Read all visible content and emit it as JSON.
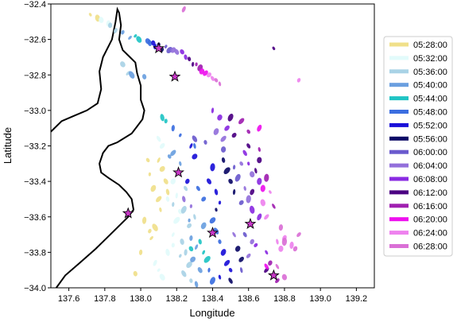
{
  "chart_data": {
    "type": "scatter",
    "xlabel": "Longitude",
    "ylabel": "Latitude",
    "xlim": [
      137.5,
      139.3
    ],
    "ylim": [
      -34.0,
      -32.4
    ],
    "xticks": [
      137.6,
      137.8,
      138.0,
      138.2,
      138.4,
      138.6,
      138.8,
      139.0,
      139.2
    ],
    "yticks": [
      -32.4,
      -32.6,
      -32.8,
      -33.0,
      -33.2,
      -33.4,
      -33.6,
      -33.8,
      -34.0
    ],
    "xtick_labels": [
      "137.6",
      "137.8",
      "138.0",
      "138.2",
      "138.4",
      "138.6",
      "138.8",
      "139.0",
      "139.2"
    ],
    "ytick_labels": [
      "−32.4",
      "−32.6",
      "−32.8",
      "−33.0",
      "−33.2",
      "−33.4",
      "−33.6",
      "−33.8",
      "−34.0"
    ],
    "grid": false,
    "legend_position": "right",
    "series": [
      {
        "name": "05:28:00",
        "color": "#f0e08a",
        "points": [
          [
            137.72,
            -32.46
          ],
          [
            137.76,
            -32.48
          ],
          [
            138.02,
            -33.62
          ],
          [
            138.05,
            -33.68
          ],
          [
            138.06,
            -33.72
          ],
          [
            138.08,
            -33.66
          ],
          [
            137.97,
            -33.92
          ],
          [
            138.0,
            -33.8
          ],
          [
            138.1,
            -33.28
          ],
          [
            138.12,
            -33.33
          ],
          [
            138.14,
            -33.4
          ],
          [
            138.15,
            -33.46
          ],
          [
            138.05,
            -33.36
          ],
          [
            138.07,
            -33.44
          ],
          [
            138.1,
            -33.5
          ],
          [
            138.04,
            -33.28
          ],
          [
            138.11,
            -33.56
          ]
        ]
      },
      {
        "name": "05:32:00",
        "color": "#e2fbfb",
        "points": [
          [
            137.78,
            -32.49
          ],
          [
            137.82,
            -32.51
          ],
          [
            138.08,
            -33.86
          ],
          [
            138.1,
            -33.9
          ],
          [
            138.12,
            -33.94
          ],
          [
            138.15,
            -33.8
          ],
          [
            138.18,
            -33.76
          ],
          [
            138.18,
            -33.7
          ],
          [
            138.2,
            -33.62
          ],
          [
            138.22,
            -33.57
          ],
          [
            138.15,
            -33.5
          ],
          [
            138.2,
            -33.48
          ],
          [
            138.18,
            -33.4
          ],
          [
            138.12,
            -33.2
          ],
          [
            138.1,
            -33.16
          ]
        ]
      },
      {
        "name": "05:36:00",
        "color": "#a9d3e6",
        "points": [
          [
            137.83,
            -32.52
          ],
          [
            137.86,
            -32.55
          ],
          [
            137.93,
            -32.79
          ],
          [
            137.9,
            -32.74
          ],
          [
            138.23,
            -33.74
          ],
          [
            138.25,
            -33.8
          ],
          [
            138.22,
            -33.82
          ],
          [
            138.27,
            -33.87
          ],
          [
            138.24,
            -33.92
          ],
          [
            138.28,
            -33.96
          ],
          [
            138.18,
            -33.53
          ],
          [
            138.24,
            -33.56
          ],
          [
            138.27,
            -33.65
          ],
          [
            138.25,
            -33.44
          ],
          [
            138.3,
            -33.6
          ]
        ]
      },
      {
        "name": "05:40:00",
        "color": "#6a9fe0",
        "points": [
          [
            137.9,
            -32.56
          ],
          [
            137.94,
            -32.59
          ],
          [
            137.95,
            -32.8
          ],
          [
            138.02,
            -32.81
          ],
          [
            138.28,
            -33.72
          ],
          [
            138.31,
            -33.77
          ],
          [
            138.29,
            -33.84
          ],
          [
            138.33,
            -33.9
          ],
          [
            138.31,
            -33.98
          ],
          [
            138.27,
            -33.62
          ],
          [
            138.35,
            -33.65
          ],
          [
            138.18,
            -33.24
          ],
          [
            138.16,
            -33.26
          ],
          [
            138.22,
            -33.3
          ]
        ]
      },
      {
        "name": "05:44:00",
        "color": "#20c4c4",
        "points": [
          [
            137.97,
            -32.58
          ],
          [
            137.99,
            -32.6
          ],
          [
            138.12,
            -33.04
          ],
          [
            138.14,
            -33.06
          ],
          [
            138.35,
            -33.8
          ],
          [
            138.37,
            -33.84
          ],
          [
            138.28,
            -33.78
          ],
          [
            138.33,
            -33.74
          ]
        ]
      },
      {
        "name": "05:48:00",
        "color": "#3b6ee0",
        "points": [
          [
            138.04,
            -32.61
          ],
          [
            138.05,
            -32.62
          ],
          [
            138.18,
            -33.1
          ],
          [
            138.22,
            -33.14
          ],
          [
            138.4,
            -33.62
          ],
          [
            138.42,
            -33.68
          ],
          [
            138.44,
            -33.74
          ],
          [
            138.38,
            -33.9
          ],
          [
            138.4,
            -33.96
          ],
          [
            138.35,
            -33.5
          ],
          [
            138.32,
            -33.44
          ],
          [
            138.3,
            -33.2
          ]
        ]
      },
      {
        "name": "05:52:00",
        "color": "#1a10d8",
        "points": [
          [
            138.07,
            -32.62
          ],
          [
            138.08,
            -32.64
          ],
          [
            138.28,
            -33.2
          ],
          [
            138.3,
            -33.26
          ],
          [
            138.38,
            -33.4
          ],
          [
            138.42,
            -33.46
          ],
          [
            138.44,
            -33.52
          ],
          [
            138.46,
            -33.8
          ],
          [
            138.48,
            -33.86
          ],
          [
            138.5,
            -33.9
          ],
          [
            138.44,
            -33.94
          ],
          [
            138.4,
            -33.32
          ],
          [
            138.26,
            -33.4
          ]
        ]
      },
      {
        "name": "05:56:00",
        "color": "#0c0a66",
        "points": [
          [
            138.1,
            -32.63
          ],
          [
            138.12,
            -32.66
          ],
          [
            138.48,
            -33.34
          ],
          [
            138.5,
            -33.4
          ],
          [
            138.46,
            -33.28
          ],
          [
            138.52,
            -33.46
          ],
          [
            138.54,
            -33.78
          ],
          [
            138.56,
            -33.84
          ],
          [
            138.5,
            -33.96
          ],
          [
            138.42,
            -33.56
          ]
        ]
      },
      {
        "name": "06:00:00",
        "color": "#6a5acd",
        "points": [
          [
            138.14,
            -32.64
          ],
          [
            138.16,
            -32.66
          ],
          [
            138.3,
            -33.16
          ],
          [
            138.36,
            -33.18
          ],
          [
            138.52,
            -33.32
          ],
          [
            138.54,
            -33.38
          ],
          [
            138.56,
            -33.52
          ],
          [
            138.58,
            -33.7
          ],
          [
            138.56,
            -33.9
          ],
          [
            138.46,
            -33.22
          ]
        ]
      },
      {
        "name": "06:04:00",
        "color": "#9370db",
        "points": [
          [
            138.18,
            -32.66
          ],
          [
            138.2,
            -32.67
          ],
          [
            138.24,
            -33.5
          ],
          [
            138.28,
            -33.54
          ],
          [
            138.42,
            -33.12
          ],
          [
            138.46,
            -33.16
          ],
          [
            138.56,
            -33.3
          ],
          [
            138.58,
            -33.44
          ],
          [
            138.6,
            -33.5
          ],
          [
            138.62,
            -33.74
          ],
          [
            138.6,
            -33.82
          ],
          [
            138.52,
            -33.7
          ],
          [
            138.62,
            -33.36
          ]
        ]
      },
      {
        "name": "06:08:00",
        "color": "#8a2be2",
        "points": [
          [
            138.23,
            -32.67
          ],
          [
            138.25,
            -32.7
          ],
          [
            138.4,
            -33.0
          ],
          [
            138.44,
            -33.04
          ],
          [
            138.48,
            -33.1
          ],
          [
            138.58,
            -33.24
          ],
          [
            138.6,
            -33.3
          ],
          [
            138.66,
            -33.4
          ],
          [
            138.66,
            -33.6
          ],
          [
            138.64,
            -33.76
          ],
          [
            138.7,
            -33.8
          ],
          [
            138.62,
            -33.56
          ]
        ]
      },
      {
        "name": "06:12:00",
        "color": "#4b0082",
        "points": [
          [
            138.27,
            -32.71
          ],
          [
            138.29,
            -32.74
          ],
          [
            138.5,
            -33.04
          ],
          [
            138.52,
            -33.14
          ],
          [
            138.6,
            -33.2
          ],
          [
            138.64,
            -33.34
          ],
          [
            138.66,
            -33.28
          ],
          [
            138.62,
            -33.46
          ],
          [
            138.7,
            -33.9
          ],
          [
            138.74,
            -32.65
          ]
        ]
      },
      {
        "name": "06:16:00",
        "color": "#a01fb0",
        "points": [
          [
            138.31,
            -32.74
          ],
          [
            138.33,
            -32.76
          ],
          [
            138.56,
            -33.06
          ],
          [
            138.6,
            -33.12
          ],
          [
            138.66,
            -33.22
          ],
          [
            138.7,
            -33.38
          ],
          [
            138.72,
            -33.86
          ],
          [
            138.76,
            -33.96
          ],
          [
            138.74,
            -33.54
          ]
        ]
      },
      {
        "name": "06:20:00",
        "color": "#ee10ee",
        "points": [
          [
            138.34,
            -32.78
          ],
          [
            138.36,
            -32.79
          ],
          [
            138.7,
            -33.88
          ],
          [
            138.74,
            -33.92
          ],
          [
            138.68,
            -33.44
          ],
          [
            138.66,
            -33.1
          ]
        ]
      },
      {
        "name": "06:24:00",
        "color": "#ee82ee",
        "points": [
          [
            138.38,
            -32.8
          ],
          [
            138.4,
            -32.82
          ],
          [
            138.76,
            -33.74
          ],
          [
            138.78,
            -33.78
          ],
          [
            138.8,
            -33.72
          ],
          [
            138.7,
            -33.6
          ],
          [
            138.72,
            -33.46
          ],
          [
            138.68,
            -33.52
          ],
          [
            138.84,
            -33.76
          ],
          [
            138.88,
            -32.83
          ]
        ]
      },
      {
        "name": "06:28:00",
        "color": "#da70d6",
        "points": [
          [
            138.42,
            -32.83
          ],
          [
            138.44,
            -32.85
          ],
          [
            138.8,
            -33.74
          ],
          [
            138.86,
            -33.78
          ],
          [
            138.88,
            -33.7
          ],
          [
            138.76,
            -33.88
          ],
          [
            138.8,
            -33.94
          ],
          [
            138.78,
            -33.66
          ],
          [
            138.24,
            -32.43
          ]
        ]
      }
    ],
    "markers": {
      "symbol": "star",
      "fill": "#c838c8",
      "edge": "#000000",
      "points": [
        [
          138.1,
          -32.65
        ],
        [
          138.19,
          -32.81
        ],
        [
          138.21,
          -33.35
        ],
        [
          137.93,
          -33.58
        ],
        [
          138.4,
          -33.69
        ],
        [
          138.61,
          -33.64
        ],
        [
          138.74,
          -33.93
        ]
      ]
    },
    "coastline": [
      [
        137.5,
        -33.12
      ],
      [
        137.56,
        -33.06
      ],
      [
        137.63,
        -33.03
      ],
      [
        137.7,
        -33.0
      ],
      [
        137.76,
        -32.96
      ],
      [
        137.78,
        -32.88
      ],
      [
        137.77,
        -32.78
      ],
      [
        137.79,
        -32.7
      ],
      [
        137.84,
        -32.6
      ],
      [
        137.86,
        -32.5
      ],
      [
        137.87,
        -32.43
      ],
      [
        137.88,
        -32.45
      ],
      [
        137.89,
        -32.52
      ],
      [
        137.88,
        -32.6
      ],
      [
        137.9,
        -32.66
      ],
      [
        137.94,
        -32.7
      ],
      [
        137.97,
        -32.73
      ],
      [
        137.98,
        -32.79
      ],
      [
        138.0,
        -32.86
      ],
      [
        138.0,
        -32.94
      ],
      [
        138.02,
        -33.0
      ],
      [
        138.01,
        -33.05
      ],
      [
        137.98,
        -33.09
      ],
      [
        137.95,
        -33.13
      ],
      [
        137.87,
        -33.18
      ],
      [
        137.82,
        -33.2
      ],
      [
        137.79,
        -33.24
      ],
      [
        137.77,
        -33.3
      ],
      [
        137.78,
        -33.35
      ],
      [
        137.82,
        -33.38
      ],
      [
        137.88,
        -33.42
      ],
      [
        137.92,
        -33.46
      ],
      [
        137.95,
        -33.5
      ],
      [
        137.96,
        -33.56
      ],
      [
        137.93,
        -33.6
      ],
      [
        137.86,
        -33.67
      ],
      [
        137.75,
        -33.78
      ],
      [
        137.66,
        -33.86
      ],
      [
        137.58,
        -33.93
      ],
      [
        137.53,
        -34.0
      ]
    ]
  }
}
